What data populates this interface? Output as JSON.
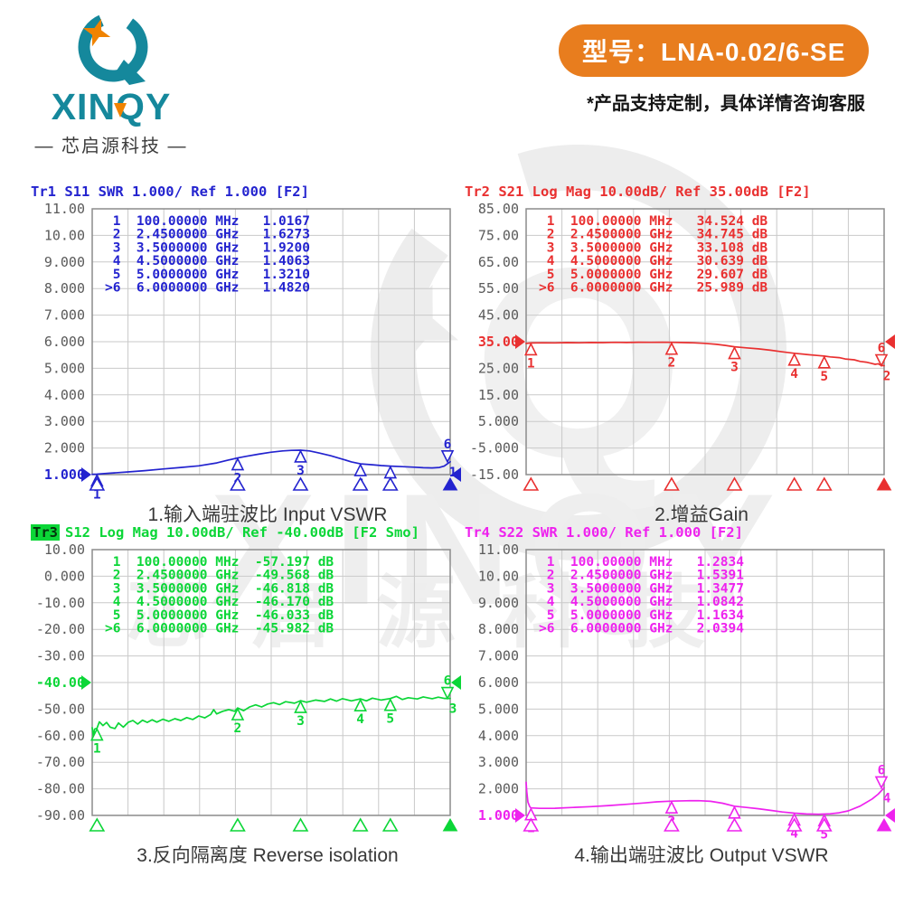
{
  "header": {
    "model_label": "型号：LNA-0.02/6-SE",
    "note": "*产品支持定制，具体详情咨询客服",
    "pill_color": "#e87d1e"
  },
  "logo": {
    "wordmark": "XINQY",
    "subtext": "— 芯启源科技 —",
    "teal": "#15889c",
    "star_orange": "#f08300"
  },
  "watermark": {
    "letter": "Q",
    "wordmark": "XINQY",
    "cjk": "芯启源科技"
  },
  "chart_data": [
    {
      "type": "line",
      "id": "input-vswr",
      "badge": "",
      "title": "Tr1 S11 SWR 1.000/ Ref 1.000 [F2]",
      "caption": "1.输入端驻波比 Input VSWR",
      "color": "#2323cf",
      "trace_number": "1",
      "x_range": [
        0.02,
        6
      ],
      "x_unit": "GHz",
      "y_range": [
        1,
        11
      ],
      "y_labels": [
        "11.00",
        "10.00",
        "9.000",
        "8.000",
        "7.000",
        "6.000",
        "5.000",
        "4.000",
        "3.000",
        "2.000",
        "1.000"
      ],
      "ref_label": "1.000",
      "ref_value": 1,
      "value_suffix": "",
      "markers": [
        {
          "n": "1",
          "f": 0.1,
          "freq": "100.00000",
          "unit": "MHz",
          "value": "1.0167"
        },
        {
          "n": "2",
          "f": 2.45,
          "freq": "2.4500000",
          "unit": "GHz",
          "value": "1.6273"
        },
        {
          "n": "3",
          "f": 3.5,
          "freq": "3.5000000",
          "unit": "GHz",
          "value": "1.9200"
        },
        {
          "n": "4",
          "f": 4.5,
          "freq": "4.5000000",
          "unit": "GHz",
          "value": "1.4063"
        },
        {
          "n": "5",
          "f": 5.0,
          "freq": "5.0000000",
          "unit": "GHz",
          "value": "1.3210"
        },
        {
          "n": "6",
          "f": 6.0,
          "freq": "6.0000000",
          "unit": "GHz",
          "value": "1.4820",
          "active": true
        }
      ],
      "trace": [
        [
          0.02,
          1.01
        ],
        [
          0.1,
          1.017
        ],
        [
          0.3,
          1.05
        ],
        [
          0.6,
          1.1
        ],
        [
          0.9,
          1.15
        ],
        [
          1.2,
          1.21
        ],
        [
          1.5,
          1.27
        ],
        [
          1.8,
          1.33
        ],
        [
          2.1,
          1.44
        ],
        [
          2.3,
          1.55
        ],
        [
          2.45,
          1.627
        ],
        [
          2.6,
          1.69
        ],
        [
          2.8,
          1.77
        ],
        [
          3.0,
          1.84
        ],
        [
          3.2,
          1.89
        ],
        [
          3.35,
          1.91
        ],
        [
          3.5,
          1.92
        ],
        [
          3.65,
          1.89
        ],
        [
          3.8,
          1.82
        ],
        [
          4.0,
          1.71
        ],
        [
          4.2,
          1.58
        ],
        [
          4.35,
          1.48
        ],
        [
          4.5,
          1.406
        ],
        [
          4.7,
          1.37
        ],
        [
          4.85,
          1.34
        ],
        [
          5.0,
          1.321
        ],
        [
          5.2,
          1.3
        ],
        [
          5.4,
          1.28
        ],
        [
          5.55,
          1.26
        ],
        [
          5.7,
          1.25
        ],
        [
          5.82,
          1.27
        ],
        [
          5.9,
          1.32
        ],
        [
          5.95,
          1.4
        ],
        [
          6.0,
          1.482
        ]
      ]
    },
    {
      "type": "line",
      "id": "gain",
      "badge": "",
      "title": "Tr2 S21 Log Mag 10.00dB/ Ref 35.00dB [F2]",
      "caption": "2.增益Gain",
      "color": "#e93030",
      "trace_number": "2",
      "x_range": [
        0.02,
        6
      ],
      "x_unit": "GHz",
      "y_range": [
        -15,
        85
      ],
      "y_labels": [
        "85.00",
        "75.00",
        "65.00",
        "55.00",
        "45.00",
        "35.00",
        "25.00",
        "15.00",
        "5.000",
        "-5.000",
        "-15.00"
      ],
      "ref_label": "35.00",
      "ref_value": 35,
      "value_suffix": " dB",
      "markers": [
        {
          "n": "1",
          "f": 0.1,
          "freq": "100.00000",
          "unit": "MHz",
          "value": "34.524"
        },
        {
          "n": "2",
          "f": 2.45,
          "freq": "2.4500000",
          "unit": "GHz",
          "value": "34.745"
        },
        {
          "n": "3",
          "f": 3.5,
          "freq": "3.5000000",
          "unit": "GHz",
          "value": "33.108"
        },
        {
          "n": "4",
          "f": 4.5,
          "freq": "4.5000000",
          "unit": "GHz",
          "value": "30.639"
        },
        {
          "n": "5",
          "f": 5.0,
          "freq": "5.0000000",
          "unit": "GHz",
          "value": "29.607"
        },
        {
          "n": "6",
          "f": 6.0,
          "freq": "6.0000000",
          "unit": "GHz",
          "value": "25.989",
          "active": true
        }
      ],
      "trace": [
        [
          0.02,
          34.35
        ],
        [
          0.1,
          34.524
        ],
        [
          0.3,
          34.6
        ],
        [
          0.5,
          34.55
        ],
        [
          0.7,
          34.65
        ],
        [
          0.9,
          34.6
        ],
        [
          1.1,
          34.7
        ],
        [
          1.3,
          34.65
        ],
        [
          1.5,
          34.75
        ],
        [
          1.7,
          34.7
        ],
        [
          1.9,
          34.78
        ],
        [
          2.1,
          34.75
        ],
        [
          2.3,
          34.8
        ],
        [
          2.45,
          34.745
        ],
        [
          2.6,
          34.7
        ],
        [
          2.8,
          34.6
        ],
        [
          3.0,
          34.4
        ],
        [
          3.2,
          34.0
        ],
        [
          3.35,
          33.6
        ],
        [
          3.5,
          33.108
        ],
        [
          3.7,
          32.7
        ],
        [
          3.9,
          32.3
        ],
        [
          4.1,
          31.8
        ],
        [
          4.3,
          31.2
        ],
        [
          4.5,
          30.639
        ],
        [
          4.7,
          30.2
        ],
        [
          4.9,
          29.8
        ],
        [
          5.0,
          29.607
        ],
        [
          5.1,
          29.3
        ],
        [
          5.25,
          29.0
        ],
        [
          5.35,
          28.5
        ],
        [
          5.5,
          28.2
        ],
        [
          5.6,
          27.6
        ],
        [
          5.7,
          27.3
        ],
        [
          5.78,
          26.9
        ],
        [
          5.85,
          26.5
        ],
        [
          5.9,
          26.7
        ],
        [
          5.95,
          26.1
        ],
        [
          6.0,
          25.989
        ]
      ]
    },
    {
      "type": "line",
      "id": "reverse-isolation",
      "badge": "Tr3",
      "title": "S12 Log Mag 10.00dB/ Ref -40.00dB [F2 Smo]",
      "caption": "3.反向隔离度 Reverse isolation",
      "color": "#0bd637",
      "trace_number": "3",
      "x_range": [
        0.02,
        6
      ],
      "x_unit": "GHz",
      "y_range": [
        -90,
        10
      ],
      "y_labels": [
        "10.00",
        "0.000",
        "-10.00",
        "-20.00",
        "-30.00",
        "-40.00",
        "-50.00",
        "-60.00",
        "-70.00",
        "-80.00",
        "-90.00"
      ],
      "ref_label": "-40.00",
      "ref_value": -40,
      "value_suffix": " dB",
      "markers": [
        {
          "n": "1",
          "f": 0.1,
          "freq": "100.00000",
          "unit": "MHz",
          "value": "-57.197"
        },
        {
          "n": "2",
          "f": 2.45,
          "freq": "2.4500000",
          "unit": "GHz",
          "value": "-49.568"
        },
        {
          "n": "3",
          "f": 3.5,
          "freq": "3.5000000",
          "unit": "GHz",
          "value": "-46.818"
        },
        {
          "n": "4",
          "f": 4.5,
          "freq": "4.5000000",
          "unit": "GHz",
          "value": "-46.170"
        },
        {
          "n": "5",
          "f": 5.0,
          "freq": "5.0000000",
          "unit": "GHz",
          "value": "-46.033"
        },
        {
          "n": "6",
          "f": 6.0,
          "freq": "6.0000000",
          "unit": "GHz",
          "value": "-45.982",
          "active": true
        }
      ],
      "trace": [
        [
          0.02,
          -57.0
        ],
        [
          0.04,
          -60.2
        ],
        [
          0.06,
          -57.5
        ],
        [
          0.1,
          -57.2
        ],
        [
          0.14,
          -54.8
        ],
        [
          0.2,
          -56.2
        ],
        [
          0.26,
          -55.0
        ],
        [
          0.32,
          -56.8
        ],
        [
          0.4,
          -57.3
        ],
        [
          0.46,
          -55.2
        ],
        [
          0.54,
          -56.8
        ],
        [
          0.62,
          -55.0
        ],
        [
          0.7,
          -54.3
        ],
        [
          0.78,
          -55.6
        ],
        [
          0.86,
          -54.2
        ],
        [
          0.94,
          -55.0
        ],
        [
          1.02,
          -54.0
        ],
        [
          1.1,
          -54.9
        ],
        [
          1.2,
          -53.8
        ],
        [
          1.3,
          -54.6
        ],
        [
          1.4,
          -53.6
        ],
        [
          1.5,
          -54.3
        ],
        [
          1.6,
          -53.2
        ],
        [
          1.7,
          -53.9
        ],
        [
          1.8,
          -52.6
        ],
        [
          1.9,
          -53.3
        ],
        [
          2.0,
          -52.0
        ],
        [
          2.05,
          -50.2
        ],
        [
          2.1,
          -51.8
        ],
        [
          2.2,
          -50.8
        ],
        [
          2.3,
          -50.2
        ],
        [
          2.4,
          -50.8
        ],
        [
          2.45,
          -49.57
        ],
        [
          2.55,
          -50.6
        ],
        [
          2.65,
          -49.2
        ],
        [
          2.75,
          -48.4
        ],
        [
          2.85,
          -49.2
        ],
        [
          2.95,
          -48.1
        ],
        [
          3.05,
          -47.6
        ],
        [
          3.15,
          -48.3
        ],
        [
          3.25,
          -47.2
        ],
        [
          3.4,
          -47.8
        ],
        [
          3.5,
          -46.82
        ],
        [
          3.6,
          -47.4
        ],
        [
          3.75,
          -46.6
        ],
        [
          3.9,
          -47.1
        ],
        [
          4.0,
          -46.2
        ],
        [
          4.1,
          -47.0
        ],
        [
          4.2,
          -46.1
        ],
        [
          4.35,
          -46.9
        ],
        [
          4.5,
          -46.17
        ],
        [
          4.6,
          -46.9
        ],
        [
          4.7,
          -45.9
        ],
        [
          4.85,
          -46.6
        ],
        [
          5.0,
          -46.03
        ],
        [
          5.1,
          -45.2
        ],
        [
          5.2,
          -46.4
        ],
        [
          5.3,
          -45.7
        ],
        [
          5.45,
          -46.2
        ],
        [
          5.55,
          -45.4
        ],
        [
          5.7,
          -46.1
        ],
        [
          5.8,
          -45.5
        ],
        [
          5.9,
          -46.0
        ],
        [
          6.0,
          -45.98
        ]
      ]
    },
    {
      "type": "line",
      "id": "output-vswr",
      "badge": "",
      "title": "Tr4 S22 SWR 1.000/ Ref 1.000 [F2]",
      "caption": "4.输出端驻波比 Output VSWR",
      "color": "#ee22ee",
      "trace_number": "4",
      "x_range": [
        0.02,
        6
      ],
      "x_unit": "GHz",
      "y_range": [
        1,
        11
      ],
      "y_labels": [
        "11.00",
        "10.00",
        "9.000",
        "8.000",
        "7.000",
        "6.000",
        "5.000",
        "4.000",
        "3.000",
        "2.000",
        "1.000"
      ],
      "ref_label": "1.000",
      "ref_value": 1,
      "value_suffix": "",
      "markers": [
        {
          "n": "1",
          "f": 0.1,
          "freq": "100.00000",
          "unit": "MHz",
          "value": "1.2834"
        },
        {
          "n": "2",
          "f": 2.45,
          "freq": "2.4500000",
          "unit": "GHz",
          "value": "1.5391"
        },
        {
          "n": "3",
          "f": 3.5,
          "freq": "3.5000000",
          "unit": "GHz",
          "value": "1.3477"
        },
        {
          "n": "4",
          "f": 4.5,
          "freq": "4.5000000",
          "unit": "GHz",
          "value": "1.0842"
        },
        {
          "n": "5",
          "f": 5.0,
          "freq": "5.0000000",
          "unit": "GHz",
          "value": "1.1634"
        },
        {
          "n": "6",
          "f": 6.0,
          "freq": "6.0000000",
          "unit": "GHz",
          "value": "2.0394",
          "active": true
        }
      ],
      "trace": [
        [
          0.02,
          2.25
        ],
        [
          0.03,
          1.9
        ],
        [
          0.05,
          1.5
        ],
        [
          0.08,
          1.33
        ],
        [
          0.1,
          1.283
        ],
        [
          0.25,
          1.265
        ],
        [
          0.5,
          1.27
        ],
        [
          0.8,
          1.3
        ],
        [
          1.1,
          1.33
        ],
        [
          1.4,
          1.37
        ],
        [
          1.7,
          1.42
        ],
        [
          2.0,
          1.47
        ],
        [
          2.2,
          1.51
        ],
        [
          2.45,
          1.539
        ],
        [
          2.7,
          1.55
        ],
        [
          2.9,
          1.555
        ],
        [
          3.1,
          1.53
        ],
        [
          3.3,
          1.46
        ],
        [
          3.5,
          1.348
        ],
        [
          3.7,
          1.3
        ],
        [
          3.9,
          1.25
        ],
        [
          4.1,
          1.19
        ],
        [
          4.3,
          1.13
        ],
        [
          4.5,
          1.084
        ],
        [
          4.7,
          1.055
        ],
        [
          4.9,
          1.045
        ],
        [
          5.1,
          1.06
        ],
        [
          5.25,
          1.1
        ],
        [
          5.4,
          1.17
        ],
        [
          5.6,
          1.35
        ],
        [
          5.8,
          1.62
        ],
        [
          5.9,
          1.8
        ],
        [
          6.0,
          2.039
        ]
      ]
    }
  ]
}
